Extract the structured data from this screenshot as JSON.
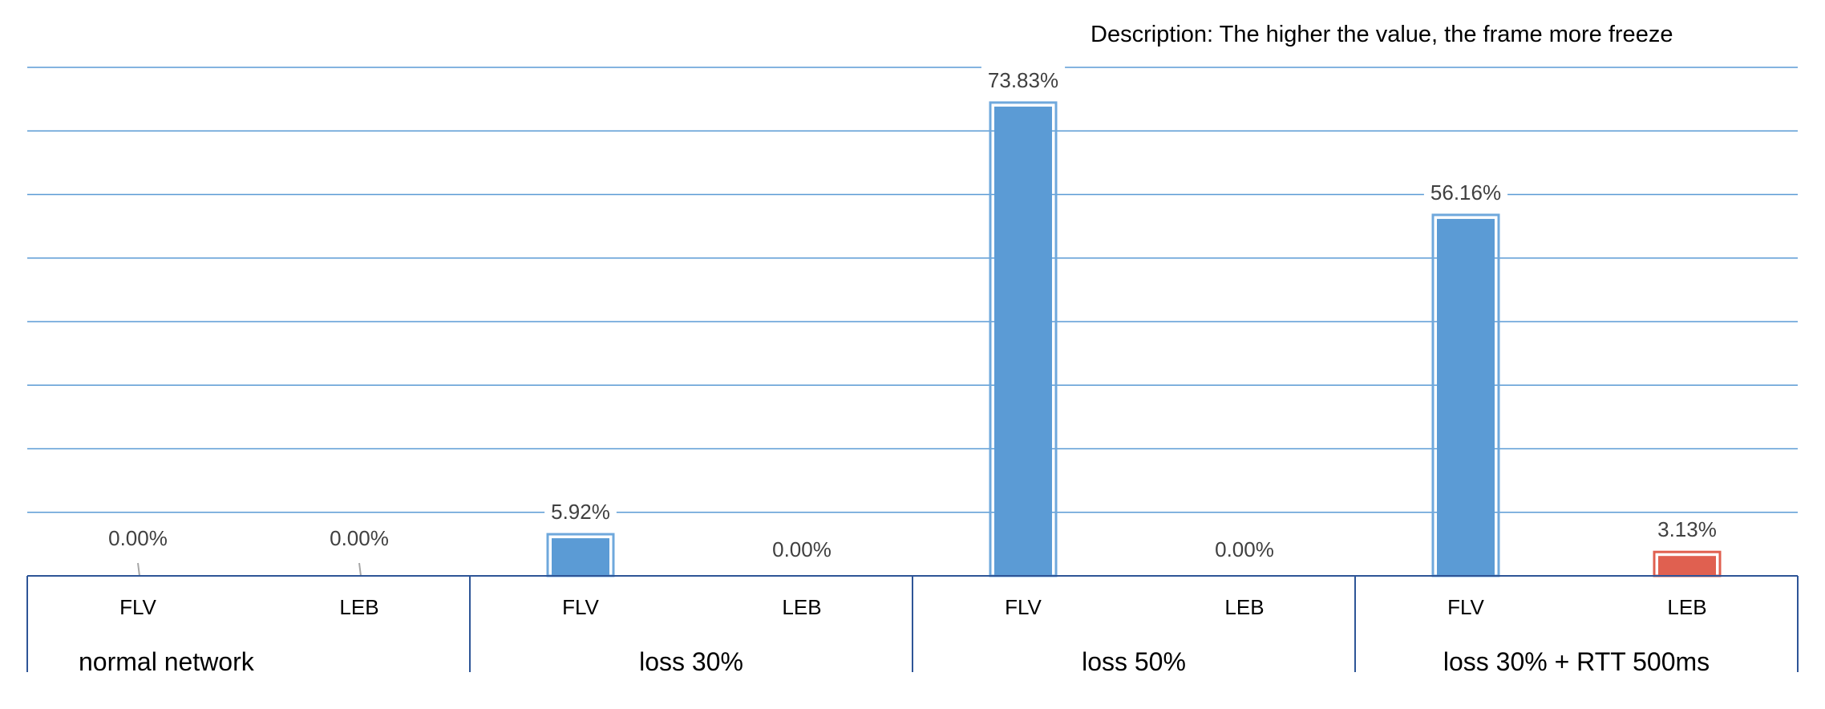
{
  "description": "Description: The higher the value, the frame more freeze",
  "chart_data": {
    "type": "bar",
    "groups": [
      {
        "label": "normal network",
        "bars": [
          {
            "label": "FLV",
            "value": 0.0,
            "value_label": "0.00%"
          },
          {
            "label": "LEB",
            "value": 0.0,
            "value_label": "0.00%"
          }
        ]
      },
      {
        "label": "loss 30%",
        "bars": [
          {
            "label": "FLV",
            "value": 5.92,
            "value_label": "5.92%"
          },
          {
            "label": "LEB",
            "value": 0.0,
            "value_label": "0.00%"
          }
        ]
      },
      {
        "label": "loss 50%",
        "bars": [
          {
            "label": "FLV",
            "value": 73.83,
            "value_label": "73.83%"
          },
          {
            "label": "LEB",
            "value": 0.0,
            "value_label": "0.00%"
          }
        ]
      },
      {
        "label": "loss 30% + RTT 500ms",
        "bars": [
          {
            "label": "FLV",
            "value": 56.16,
            "value_label": "56.16%"
          },
          {
            "label": "LEB",
            "value": 3.13,
            "value_label": "3.13%"
          }
        ]
      }
    ],
    "ylim": [
      0,
      80
    ],
    "grid": true,
    "colors": {
      "default": "#5b9bd5",
      "default_outline": "#6fa8dc",
      "highlight": "#e06050",
      "gridline": "#5b9bd5",
      "axis": "#2e5597"
    }
  }
}
